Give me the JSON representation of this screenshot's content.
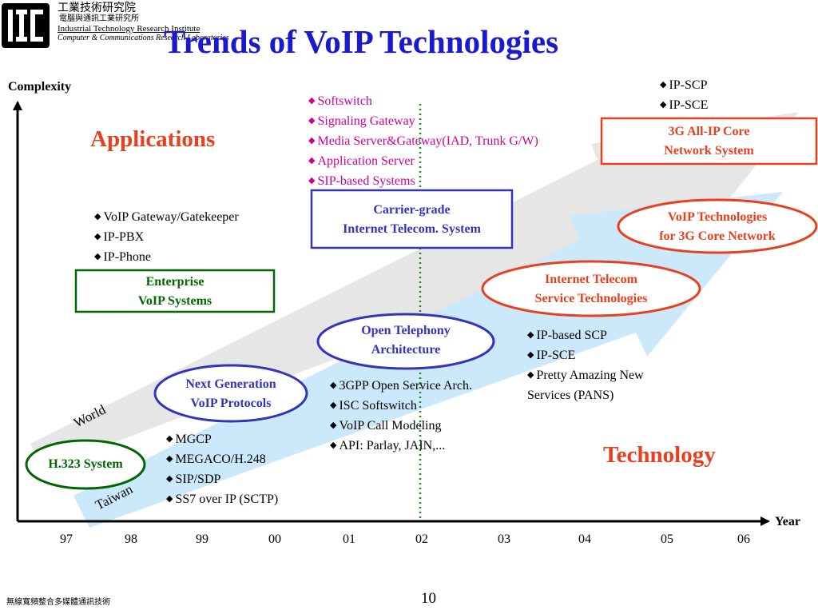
{
  "header": {
    "org_cn": "工業技術研究院",
    "org_cn_sub": "電腦與通訊工業研究所",
    "org_en": "Industrial Technology Research Institute",
    "org_en_sub": "Computer & Communications Research Laboratories",
    "title": "Trends of VoIP Technologies"
  },
  "axes": {
    "y_label": "Complexity",
    "x_label": "Year",
    "years": [
      "97",
      "98",
      "99",
      "00",
      "01",
      "02",
      "03",
      "04",
      "05",
      "06"
    ]
  },
  "sections": {
    "applications": "Applications",
    "technology": "Technology"
  },
  "arrows": {
    "world": "World",
    "taiwan": "Taiwan"
  },
  "nodes": {
    "h323": "H.323 System",
    "nextgen": [
      "Next Generation",
      "VoIP Protocols"
    ],
    "enterprise": [
      "Enterprise",
      "VoIP Systems"
    ],
    "open_tel": [
      "Open Telephony",
      "Architecture"
    ],
    "carrier": [
      "Carrier-grade",
      "Internet Telecom. System"
    ],
    "inet_telecom": [
      "Internet Telecom",
      "Service Technologies"
    ],
    "voip_3g": [
      "VoIP Technologies",
      "for 3G Core Network"
    ],
    "allip": [
      "3G All-IP Core",
      "Network System"
    ]
  },
  "lists": {
    "protocols": [
      "MGCP",
      "MEGACO/H.248",
      "SIP/SDP",
      "SS7 over IP (SCTP)"
    ],
    "enterprise_items": [
      "VoIP Gateway/Gatekeeper",
      "IP-PBX",
      "IP-Phone"
    ],
    "open_arch": [
      "3GPP Open Service Arch.",
      "ISC Softswitch",
      "VoIP Call Modeling",
      "API: Parlay, JAIN,..."
    ],
    "carrier_items": [
      "Softswitch",
      "Signaling Gateway",
      "Media Server&Gateway(IAD, Trunk G/W)",
      "Application Server",
      "SIP-based Systems"
    ],
    "service_items": [
      "IP-based SCP",
      "IP-SCE",
      "Pretty Amazing New",
      "Services (PANS)"
    ],
    "ipscp_items": [
      "IP-SCP",
      "IP-SCE"
    ]
  },
  "bullet": "◆",
  "colors": {
    "title": "#1a1acc",
    "red": "#e8401f",
    "green": "#006600",
    "blue": "#3333bb",
    "magenta": "#cc0099",
    "world_arrow": "#e6e6e6",
    "taiwan_arrow": "#cce8fb",
    "dotted_line": "#228822"
  },
  "footer": {
    "left": "無線寬頻整合多媒體通訊技術",
    "page": "10"
  }
}
